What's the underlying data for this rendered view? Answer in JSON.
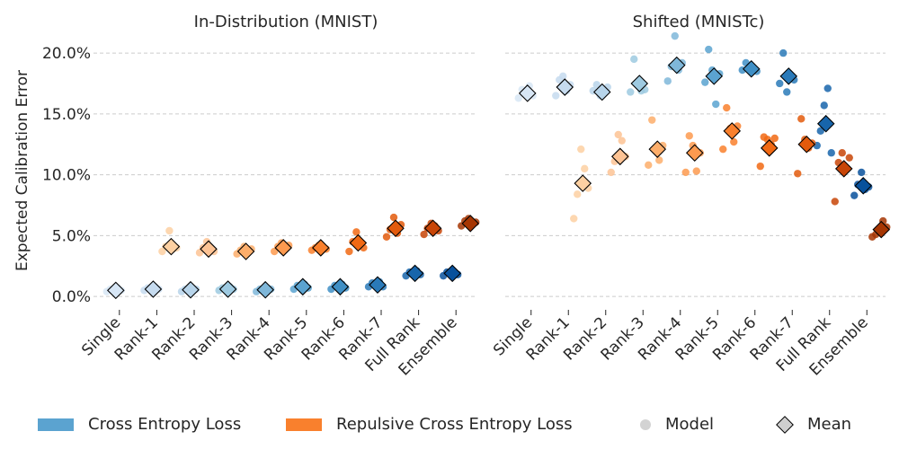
{
  "chart_data": [
    {
      "type": "scatter",
      "title": "In-Distribution (MNIST)",
      "ylabel": "Expected Calibration Error",
      "yticks": [
        "0.0%",
        "5.0%",
        "10.0%",
        "15.0%",
        "20.0%"
      ],
      "ylim": [
        -0.8,
        22.0
      ],
      "categories": [
        "Single",
        "Rank-1",
        "Rank-2",
        "Rank-3",
        "Rank-4",
        "Rank-5",
        "Rank-6",
        "Rank-7",
        "Full Rank",
        "Ensemble"
      ],
      "grid": "horizontal dashed",
      "series": [
        {
          "name": "Cross Entropy Loss",
          "means": [
            0.5,
            0.6,
            0.55,
            0.6,
            0.55,
            0.8,
            0.8,
            0.95,
            1.9,
            1.9
          ],
          "points": [
            [
              0.4,
              0.6,
              0.5,
              0.7,
              0.5
            ],
            [
              0.5,
              0.7,
              0.6,
              0.8,
              0.6
            ],
            [
              0.4,
              0.6,
              0.5,
              0.7,
              0.6
            ],
            [
              0.5,
              0.7,
              0.6,
              0.8,
              0.6
            ],
            [
              0.4,
              0.6,
              0.5,
              0.7,
              0.6
            ],
            [
              0.6,
              0.9,
              0.8,
              1.0,
              0.7
            ],
            [
              0.6,
              0.9,
              0.8,
              1.0,
              0.7
            ],
            [
              0.8,
              1.1,
              0.9,
              1.2,
              0.8
            ],
            [
              1.7,
              2.0,
              1.9,
              2.1,
              1.8
            ],
            [
              1.7,
              2.0,
              1.9,
              2.0,
              1.8
            ]
          ]
        },
        {
          "name": "Repulsive Cross Entropy Loss",
          "means": [
            null,
            4.1,
            3.9,
            3.7,
            4.0,
            4.0,
            4.4,
            5.6,
            5.6,
            6.0
          ],
          "points": [
            [],
            [
              3.7,
              4.1,
              5.4,
              3.9,
              4.0
            ],
            [
              3.6,
              4.0,
              4.5,
              3.8,
              3.7
            ],
            [
              3.5,
              3.8,
              4.1,
              3.6,
              3.9
            ],
            [
              3.7,
              4.1,
              4.4,
              3.9,
              4.2
            ],
            [
              3.8,
              4.0,
              4.2,
              4.1,
              3.9
            ],
            [
              3.7,
              4.5,
              5.3,
              4.3,
              4.0
            ],
            [
              4.9,
              5.5,
              6.5,
              5.2,
              5.9
            ],
            [
              5.1,
              5.6,
              6.0,
              5.8,
              5.4
            ],
            [
              5.8,
              6.2,
              6.4,
              5.9,
              6.1
            ]
          ]
        }
      ]
    },
    {
      "type": "scatter",
      "title": "Shifted (MNISTc)",
      "yticks": [
        "0.0%",
        "5.0%",
        "10.0%",
        "15.0%",
        "20.0%"
      ],
      "ylim": [
        -0.8,
        22.0
      ],
      "categories": [
        "Single",
        "Rank-1",
        "Rank-2",
        "Rank-3",
        "Rank-4",
        "Rank-5",
        "Rank-6",
        "Rank-7",
        "Full Rank",
        "Ensemble"
      ],
      "grid": "horizontal dashed",
      "series": [
        {
          "name": "Cross Entropy Loss",
          "means": [
            16.7,
            17.2,
            16.8,
            17.5,
            19.0,
            18.1,
            18.7,
            18.1,
            14.2,
            9.1
          ],
          "points": [
            [
              16.3,
              17.0,
              16.8,
              17.3,
              16.5
            ],
            [
              16.5,
              17.8,
              18.1,
              16.9,
              17.4
            ],
            [
              16.9,
              17.4,
              16.5,
              16.8,
              17.2
            ],
            [
              16.8,
              19.5,
              17.6,
              16.9,
              17.0
            ],
            [
              17.7,
              18.9,
              21.4,
              18.6,
              19.2
            ],
            [
              17.6,
              20.3,
              18.6,
              15.8,
              18.3
            ],
            [
              18.6,
              19.2,
              18.9,
              18.7,
              18.5
            ],
            [
              17.5,
              20.0,
              16.8,
              18.0,
              17.8
            ],
            [
              12.4,
              13.6,
              15.7,
              17.1,
              11.8
            ],
            [
              8.3,
              9.2,
              10.2,
              8.8,
              9.0
            ]
          ]
        },
        {
          "name": "Repulsive Cross Entropy Loss",
          "means": [
            null,
            9.3,
            11.5,
            12.1,
            11.8,
            13.6,
            12.2,
            12.5,
            10.5,
            5.5
          ],
          "points": [
            [],
            [
              6.4,
              8.4,
              12.1,
              10.5,
              8.9
            ],
            [
              10.2,
              11.1,
              13.3,
              12.8,
              11.5
            ],
            [
              10.8,
              14.5,
              12.1,
              11.2,
              12.4
            ],
            [
              10.2,
              13.2,
              12.4,
              10.3,
              11.8
            ],
            [
              12.1,
              15.5,
              13.8,
              12.7,
              14.0
            ],
            [
              10.7,
              13.1,
              12.9,
              12.5,
              13.0
            ],
            [
              10.1,
              14.6,
              12.9,
              12.2,
              12.6
            ],
            [
              7.8,
              11.0,
              11.8,
              10.4,
              11.4
            ],
            [
              4.9,
              5.1,
              5.3,
              6.2,
              5.7
            ]
          ]
        }
      ]
    }
  ],
  "legend": {
    "ce_label": "Cross Entropy Loss",
    "rce_label": "Repulsive Cross Entropy Loss",
    "model_label": "Model",
    "mean_label": "Mean"
  },
  "colors": {
    "blues": [
      "#d7e6f5",
      "#c6dbef",
      "#b7d4ea",
      "#9ecae1",
      "#7fb7d9",
      "#5ba3d0",
      "#3f8fc5",
      "#2a7ab9",
      "#1765ab",
      "#08519c"
    ],
    "oranges": [
      "#fee6ce",
      "#fdd0a2",
      "#fdc394",
      "#fdae6b",
      "#fd9a4f",
      "#f9802d",
      "#f16913",
      "#e35a0c",
      "#c84507",
      "#a63603"
    ],
    "legend_blue": "#5ba3d0",
    "legend_orange": "#f9802d",
    "model_gray": "#d3d3d3",
    "mean_gray": "#cfcfcf"
  }
}
